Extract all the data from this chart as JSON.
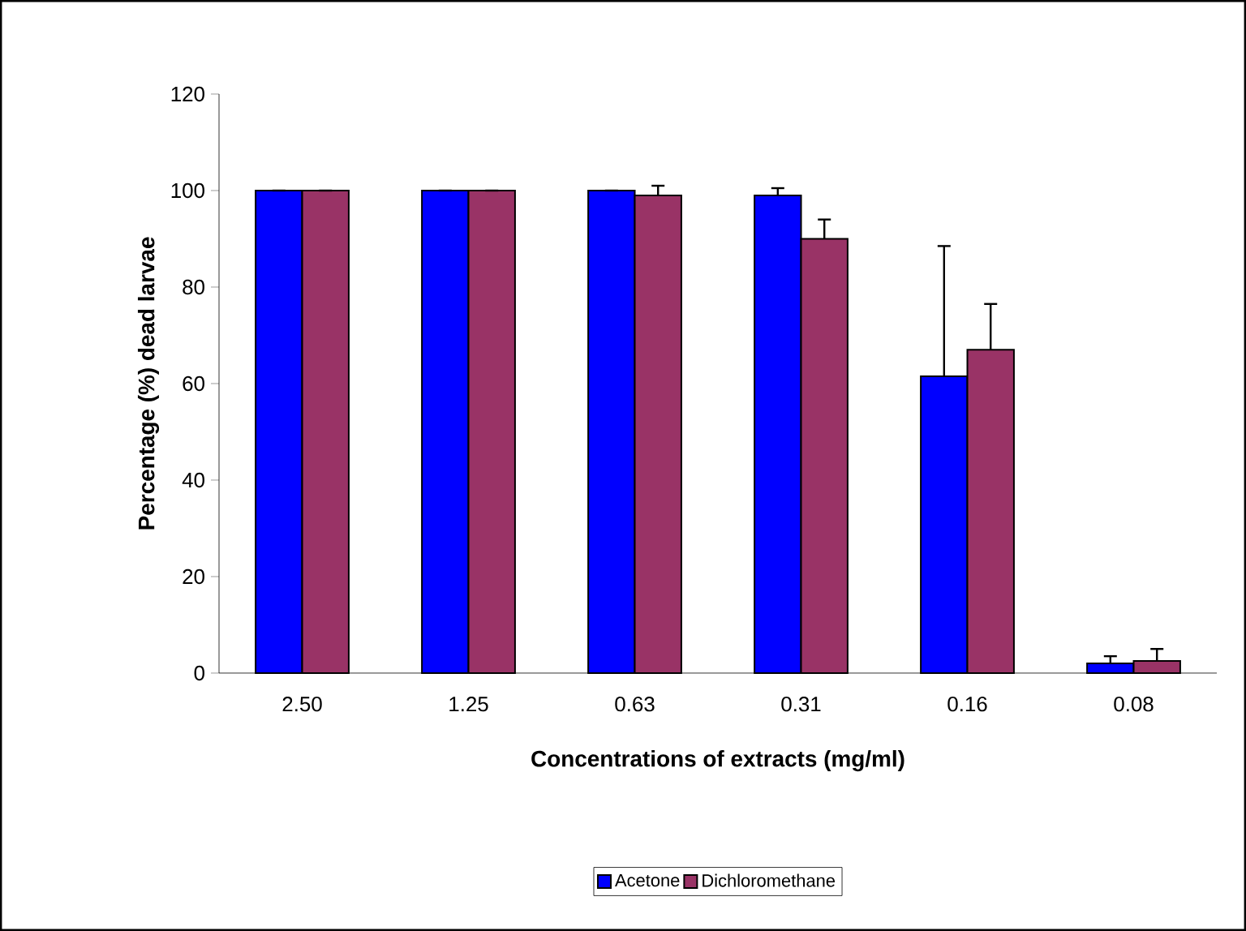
{
  "chart_data": {
    "type": "bar",
    "xlabel": "Concentrations of extracts (mg/ml)",
    "ylabel": "Percentage (%) dead larvae",
    "categories": [
      "2.50",
      "1.25",
      "0.63",
      "0.31",
      "0.16",
      "0.08"
    ],
    "series": [
      {
        "name": "Acetone",
        "color": "#0000ff",
        "values": [
          100,
          100,
          100,
          99,
          61.5,
          2
        ],
        "errors": [
          null,
          null,
          null,
          1.5,
          27,
          1.5
        ]
      },
      {
        "name": "Dichloromethane",
        "color": "#993366",
        "values": [
          100,
          100,
          99,
          90,
          67,
          2.5
        ],
        "errors": [
          null,
          null,
          2,
          4,
          9.5,
          2.5
        ]
      }
    ],
    "ylim": [
      0,
      120
    ],
    "yticks": [
      0,
      20,
      40,
      60,
      80,
      100,
      120
    ],
    "grid": false,
    "legend": "bottom"
  }
}
